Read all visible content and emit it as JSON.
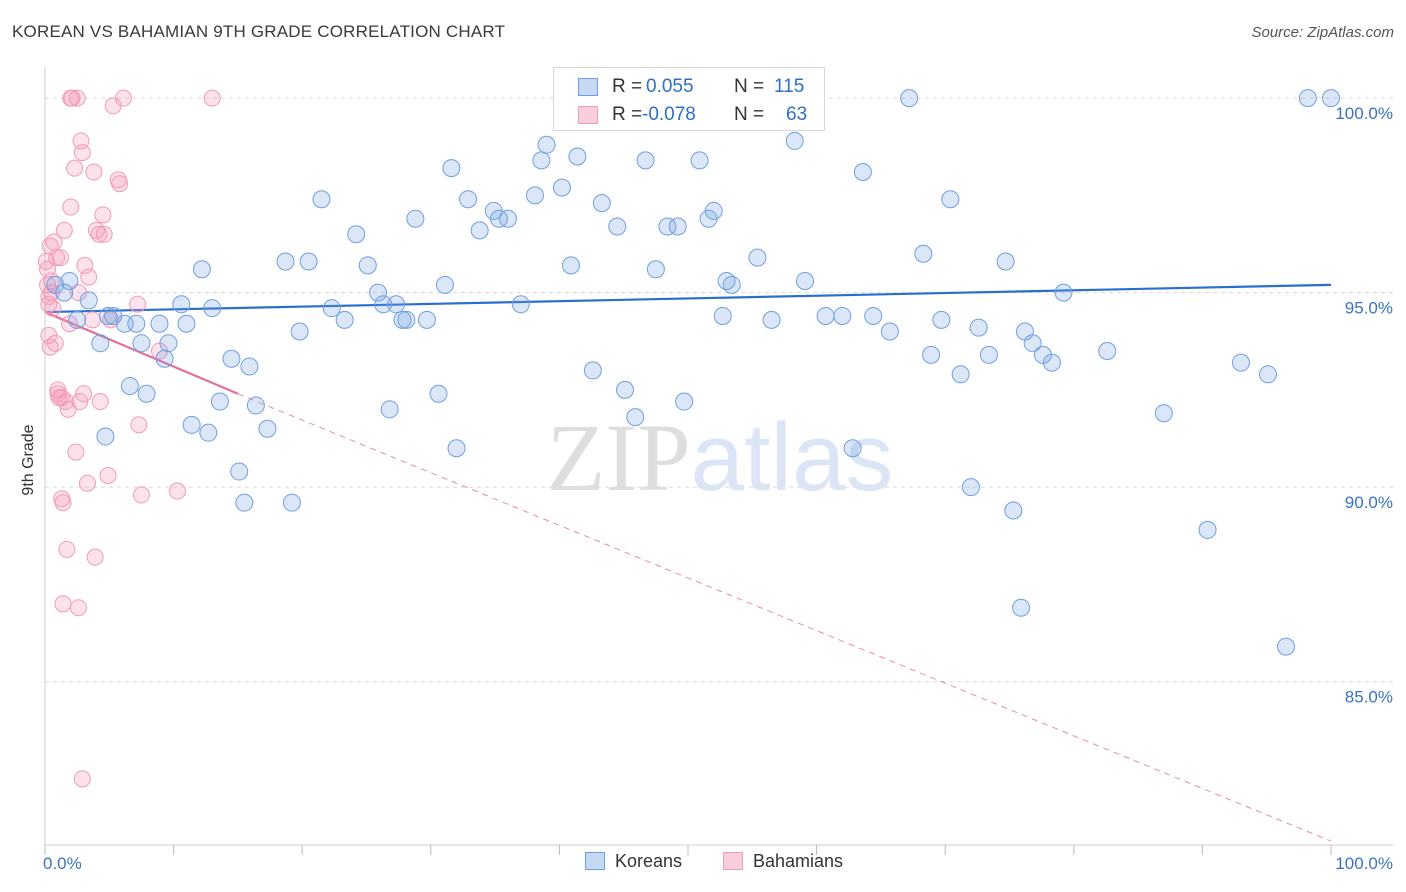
{
  "title": "KOREAN VS BAHAMIAN 9TH GRADE CORRELATION CHART",
  "source": "Source: ZipAtlas.com",
  "legend": {
    "rows": [
      {
        "r_label": "R =",
        "r_value": "0.055",
        "n_label": "N =",
        "n_value": "115"
      },
      {
        "r_label": "R =",
        "r_value": "-0.078",
        "n_label": "N =",
        "n_value": "63"
      }
    ]
  },
  "bottom_legend": {
    "koreans": "Koreans",
    "bahamians": "Bahamians"
  },
  "colors": {
    "korean": "#6f9fe0",
    "korean_line": "#2a6fd0",
    "bahamian": "#f39ab8",
    "bahamian_line": "#e3709a",
    "accent": "#3a73c4"
  },
  "chart_data": {
    "type": "scatter",
    "title": "KOREAN VS BAHAMIAN 9TH GRADE CORRELATION CHART",
    "xlabel": "",
    "ylabel": "9th Grade",
    "xlim": [
      0,
      100
    ],
    "ylim": [
      80.8,
      100.8
    ],
    "x_ticks": [
      "0.0%",
      "100.0%"
    ],
    "y_ticks": [
      {
        "value": 85,
        "label": "85.0%"
      },
      {
        "value": 90,
        "label": "90.0%"
      },
      {
        "value": 95,
        "label": "95.0%"
      },
      {
        "value": 100,
        "label": "100.0%"
      }
    ],
    "grid": true,
    "legend_position": "top-center",
    "watermark": "ZIPatlas",
    "series": [
      {
        "name": "Koreans",
        "r": 0.055,
        "n": 115,
        "trend": {
          "x0": 0,
          "y0": 94.5,
          "x1": 100,
          "y1": 95.2,
          "style": "solid"
        },
        "points": [
          [
            0.8,
            95.2
          ],
          [
            1.5,
            95.0
          ],
          [
            1.9,
            95.3
          ],
          [
            2.5,
            94.3
          ],
          [
            3.4,
            94.8
          ],
          [
            4.3,
            93.7
          ],
          [
            4.7,
            91.3
          ],
          [
            4.9,
            94.4
          ],
          [
            5.3,
            94.4
          ],
          [
            6.2,
            94.2
          ],
          [
            6.6,
            92.6
          ],
          [
            7.1,
            94.2
          ],
          [
            7.5,
            93.7
          ],
          [
            7.9,
            92.4
          ],
          [
            8.9,
            94.2
          ],
          [
            9.3,
            93.3
          ],
          [
            9.6,
            93.7
          ],
          [
            10.6,
            94.7
          ],
          [
            11.0,
            94.2
          ],
          [
            11.4,
            91.6
          ],
          [
            12.2,
            95.6
          ],
          [
            12.7,
            91.4
          ],
          [
            13.0,
            94.6
          ],
          [
            13.6,
            92.2
          ],
          [
            14.5,
            93.3
          ],
          [
            15.1,
            90.4
          ],
          [
            15.5,
            89.6
          ],
          [
            15.9,
            93.1
          ],
          [
            16.4,
            92.1
          ],
          [
            17.3,
            91.5
          ],
          [
            18.7,
            95.8
          ],
          [
            19.2,
            89.6
          ],
          [
            19.8,
            94.0
          ],
          [
            20.5,
            95.8
          ],
          [
            21.5,
            97.4
          ],
          [
            22.3,
            94.6
          ],
          [
            23.3,
            94.3
          ],
          [
            24.2,
            96.5
          ],
          [
            25.1,
            95.7
          ],
          [
            25.9,
            95.0
          ],
          [
            26.3,
            94.7
          ],
          [
            26.8,
            92.0
          ],
          [
            27.3,
            94.7
          ],
          [
            27.8,
            94.3
          ],
          [
            28.1,
            94.3
          ],
          [
            28.8,
            96.9
          ],
          [
            29.7,
            94.3
          ],
          [
            30.6,
            92.4
          ],
          [
            31.1,
            95.2
          ],
          [
            31.6,
            98.2
          ],
          [
            32.0,
            91.0
          ],
          [
            32.9,
            97.4
          ],
          [
            33.8,
            96.6
          ],
          [
            34.9,
            97.1
          ],
          [
            35.3,
            96.9
          ],
          [
            36.0,
            96.9
          ],
          [
            37.0,
            94.7
          ],
          [
            38.1,
            97.5
          ],
          [
            38.6,
            98.4
          ],
          [
            39.0,
            98.8
          ],
          [
            40.2,
            97.7
          ],
          [
            40.9,
            95.7
          ],
          [
            41.4,
            98.5
          ],
          [
            42.6,
            93.0
          ],
          [
            43.3,
            97.3
          ],
          [
            44.5,
            96.7
          ],
          [
            45.1,
            92.5
          ],
          [
            45.9,
            91.8
          ],
          [
            46.7,
            98.4
          ],
          [
            47.5,
            95.6
          ],
          [
            48.4,
            96.7
          ],
          [
            49.2,
            96.7
          ],
          [
            49.7,
            92.2
          ],
          [
            50.9,
            98.4
          ],
          [
            51.6,
            96.9
          ],
          [
            52.0,
            97.1
          ],
          [
            52.7,
            94.4
          ],
          [
            53.0,
            95.3
          ],
          [
            53.4,
            95.2
          ],
          [
            55.4,
            95.9
          ],
          [
            56.5,
            94.3
          ],
          [
            57.8,
            100.0
          ],
          [
            58.3,
            98.9
          ],
          [
            59.1,
            95.3
          ],
          [
            60.7,
            94.4
          ],
          [
            62.0,
            94.4
          ],
          [
            62.8,
            91.0
          ],
          [
            63.6,
            98.1
          ],
          [
            64.4,
            94.4
          ],
          [
            65.7,
            94.0
          ],
          [
            67.2,
            100.0
          ],
          [
            68.3,
            96.0
          ],
          [
            68.9,
            93.4
          ],
          [
            69.7,
            94.3
          ],
          [
            70.4,
            97.4
          ],
          [
            71.2,
            92.9
          ],
          [
            72.0,
            90.0
          ],
          [
            72.6,
            94.1
          ],
          [
            73.4,
            93.4
          ],
          [
            74.7,
            95.8
          ],
          [
            75.3,
            89.4
          ],
          [
            75.9,
            86.9
          ],
          [
            76.2,
            94.0
          ],
          [
            76.8,
            93.7
          ],
          [
            77.6,
            93.4
          ],
          [
            78.3,
            93.2
          ],
          [
            79.2,
            95.0
          ],
          [
            82.6,
            93.5
          ],
          [
            87.0,
            91.9
          ],
          [
            90.4,
            88.9
          ],
          [
            93.0,
            93.2
          ],
          [
            95.1,
            92.9
          ],
          [
            96.5,
            85.9
          ],
          [
            98.2,
            100.0
          ],
          [
            100.0,
            100.0
          ]
        ]
      },
      {
        "name": "Bahamians",
        "r": -0.078,
        "n": 63,
        "trend": {
          "x0": 0,
          "y0": 94.5,
          "x1": 15.0,
          "y1": 92.4,
          "style": "solid",
          "dashed_to": {
            "x": 100,
            "y": 80.9
          }
        },
        "points": [
          [
            0.1,
            95.8
          ],
          [
            0.2,
            95.6
          ],
          [
            0.2,
            95.2
          ],
          [
            0.3,
            94.9
          ],
          [
            0.3,
            94.7
          ],
          [
            0.3,
            93.9
          ],
          [
            0.4,
            93.6
          ],
          [
            0.4,
            96.2
          ],
          [
            0.5,
            95.3
          ],
          [
            0.5,
            95.0
          ],
          [
            0.6,
            94.6
          ],
          [
            0.7,
            96.3
          ],
          [
            0.8,
            93.7
          ],
          [
            0.9,
            95.9
          ],
          [
            1.0,
            92.5
          ],
          [
            1.0,
            92.4
          ],
          [
            1.1,
            92.3
          ],
          [
            1.2,
            95.9
          ],
          [
            1.3,
            92.3
          ],
          [
            1.3,
            89.7
          ],
          [
            1.4,
            89.6
          ],
          [
            1.4,
            87.0
          ],
          [
            1.5,
            96.6
          ],
          [
            1.6,
            92.2
          ],
          [
            1.7,
            88.4
          ],
          [
            1.8,
            92.0
          ],
          [
            1.9,
            94.2
          ],
          [
            2.0,
            100.0
          ],
          [
            2.0,
            97.2
          ],
          [
            2.1,
            100.0
          ],
          [
            2.3,
            98.2
          ],
          [
            2.4,
            90.9
          ],
          [
            2.5,
            100.0
          ],
          [
            2.6,
            95.0
          ],
          [
            2.6,
            86.9
          ],
          [
            2.7,
            92.2
          ],
          [
            2.8,
            98.9
          ],
          [
            2.9,
            98.6
          ],
          [
            2.9,
            82.5
          ],
          [
            3.0,
            92.4
          ],
          [
            3.1,
            95.7
          ],
          [
            3.3,
            90.1
          ],
          [
            3.4,
            95.4
          ],
          [
            3.7,
            94.3
          ],
          [
            3.8,
            98.1
          ],
          [
            3.9,
            88.2
          ],
          [
            4.0,
            96.6
          ],
          [
            4.2,
            96.5
          ],
          [
            4.3,
            92.2
          ],
          [
            4.5,
            97.0
          ],
          [
            4.6,
            96.5
          ],
          [
            4.9,
            90.3
          ],
          [
            5.1,
            94.3
          ],
          [
            5.3,
            99.8
          ],
          [
            5.7,
            97.9
          ],
          [
            5.8,
            97.8
          ],
          [
            6.1,
            100.0
          ],
          [
            7.2,
            94.7
          ],
          [
            7.3,
            91.6
          ],
          [
            7.5,
            89.8
          ],
          [
            8.9,
            93.5
          ],
          [
            10.3,
            89.9
          ],
          [
            13.0,
            100.0
          ]
        ]
      }
    ]
  }
}
